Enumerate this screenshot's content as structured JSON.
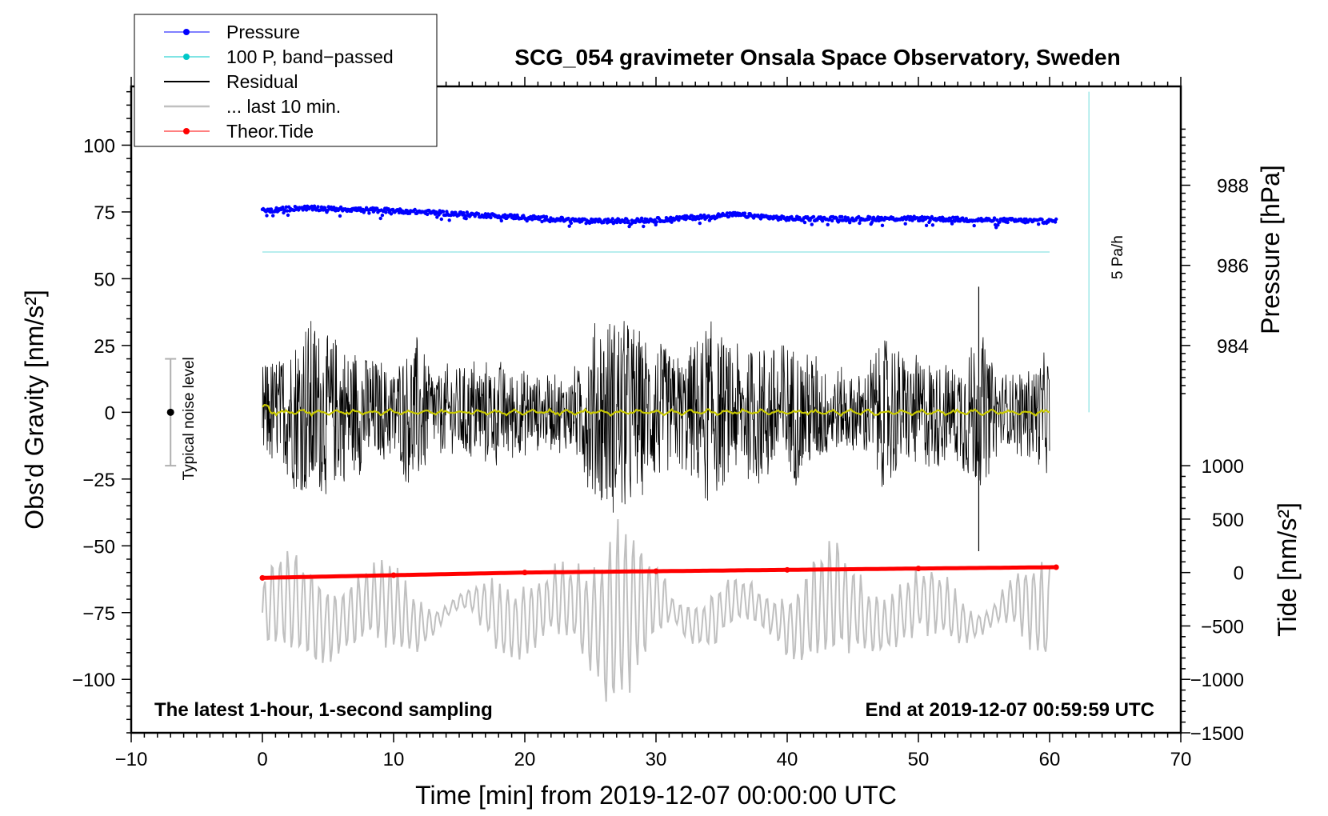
{
  "chart_data": {
    "type": "line",
    "title": "SCG_054 gravimeter Onsala Space Observatory, Sweden",
    "xlabel": "Time [min] from 2019-12-07 00:00:00 UTC",
    "ylabel_left": "Obs'd Gravity [nm/s²]",
    "ylabel_right_top": "Pressure [hPa]",
    "ylabel_right_bottom": "Tide [nm/s²]",
    "xlim": [
      -10,
      70
    ],
    "ylim_left": [
      -120,
      122
    ],
    "x_ticks": [
      -10,
      0,
      10,
      20,
      30,
      40,
      50,
      60,
      70
    ],
    "x_tick_labels": [
      "−10",
      "0",
      "10",
      "20",
      "30",
      "40",
      "50",
      "60",
      "70"
    ],
    "y_left_ticks": [
      100,
      75,
      50,
      25,
      0,
      -25,
      -50,
      -75,
      -100
    ],
    "y_left_tick_labels": [
      "100",
      "75",
      "50",
      "25",
      "0",
      "−25",
      "−50",
      "−75",
      "−100"
    ],
    "pressure_axis": {
      "ticks": [
        988,
        986,
        984
      ],
      "tick_labels": [
        "988",
        "986",
        "984"
      ],
      "left_value_at_988": 85,
      "left_units_per_hPa": 15
    },
    "tide_axis": {
      "ticks": [
        1000,
        500,
        0,
        -500,
        -1000,
        -1500
      ],
      "tick_labels": [
        "1000",
        "500",
        "0",
        "−500",
        "−1000",
        "−1500"
      ],
      "left_value_at_0": -60,
      "left_units_per_1000": 40
    },
    "legend": {
      "position": "top-left",
      "entries": [
        {
          "label": "Pressure",
          "color": "#0000ff",
          "marker": "dot"
        },
        {
          "label": "100 P, band−passed",
          "color": "#00c8c8",
          "marker": "dot"
        },
        {
          "label": "Residual",
          "color": "#000000",
          "marker": "line"
        },
        {
          "label": "... last 10 min.",
          "color": "#c0c0c0",
          "marker": "line"
        },
        {
          "label": "Theor.Tide",
          "color": "#ff0000",
          "marker": "dot"
        }
      ]
    },
    "series": [
      {
        "name": "Pressure",
        "color": "#0000ff",
        "x": [
          0,
          3,
          10,
          20,
          25,
          30,
          36,
          40,
          50,
          60
        ],
        "y": [
          75.5,
          76.5,
          75.5,
          73,
          71.5,
          72,
          74,
          72.5,
          72.5,
          71.5
        ]
      },
      {
        "name": "100 P, band−passed",
        "color": "#a0e8e8",
        "x": [
          0,
          60
        ],
        "y": [
          60,
          60
        ]
      },
      {
        "name": "Residual",
        "color": "#000000",
        "x_range": [
          0,
          60
        ],
        "amplitude": 30
      },
      {
        "name": "... last 10 min.",
        "color": "#c0c0c0",
        "x_range": [
          0,
          60
        ],
        "center": -75,
        "amplitude": 18
      },
      {
        "name": "Theor.Tide",
        "color": "#ff0000",
        "x": [
          0,
          10,
          20,
          30,
          40,
          50,
          60.5
        ],
        "y": [
          -62,
          -61,
          -60,
          -59.5,
          -59,
          -58.5,
          -58
        ]
      }
    ],
    "mean_line": {
      "color": "#c8c800",
      "y": 0
    },
    "noise_bar": {
      "label": "Typical noise level",
      "x": -7,
      "center": 0,
      "half_width": 20
    },
    "rate_marker": {
      "label": "5 Pa/h",
      "x": 63,
      "y_range": [
        0,
        120
      ]
    },
    "annotations": {
      "bottom_left": "The latest 1-hour, 1-second sampling",
      "bottom_right": "End at 2019-12-07 00:59:59 UTC"
    }
  }
}
